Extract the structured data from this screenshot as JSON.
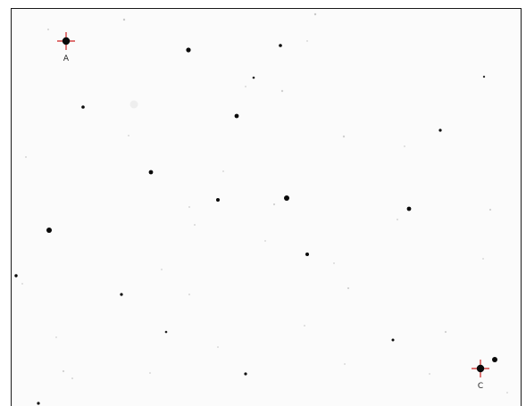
{
  "markers": [
    {
      "id": "A",
      "label": "A"
    },
    {
      "id": "C",
      "label": "C"
    }
  ],
  "colors": {
    "background": "#fbfbfb",
    "star": "#0a0a0a",
    "faint_star": "#c8c8c8",
    "marker": "#cc1f1f",
    "frame": "#1a1a1a"
  }
}
